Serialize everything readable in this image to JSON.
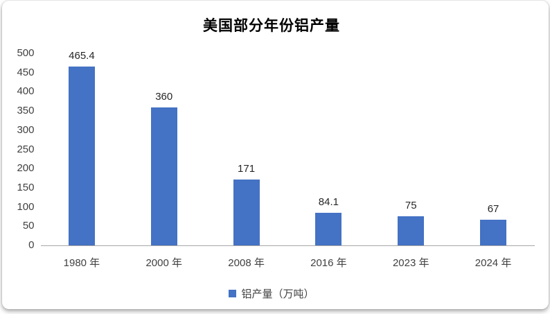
{
  "chart_data": {
    "type": "bar",
    "title": "美国部分年份铝产量",
    "categories": [
      "1980 年",
      "2000 年",
      "2008 年",
      "2016 年",
      "2023 年",
      "2024 年"
    ],
    "values": [
      465.4,
      360,
      171,
      84.1,
      75,
      67
    ],
    "value_labels": [
      "465.4",
      "360",
      "171",
      "84.1",
      "75",
      "67"
    ],
    "legend": "铝产量（万吨）",
    "xlabel": "",
    "ylabel": "",
    "ylim": [
      0,
      500
    ],
    "ytick_step": 50,
    "grid": false,
    "legend_position": "bottom",
    "bar_color": "#4472C4",
    "axis_color": "#a6a6a6",
    "tick_label_color": "#404040"
  }
}
